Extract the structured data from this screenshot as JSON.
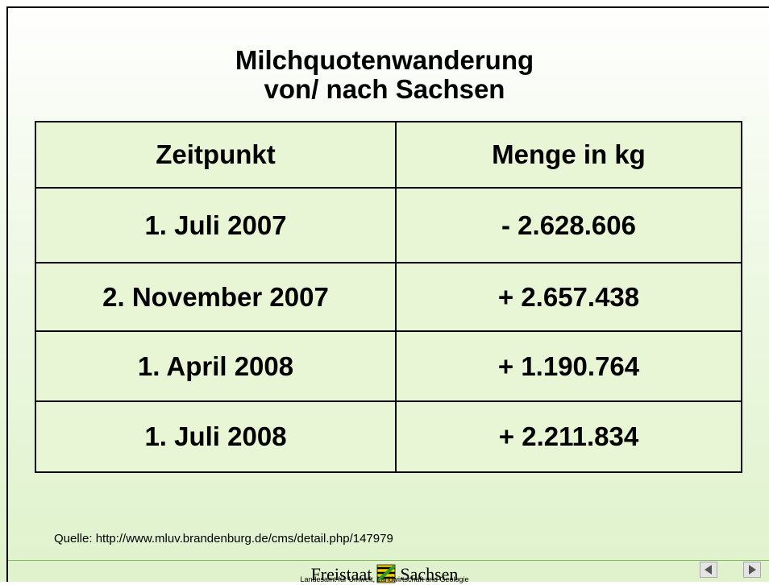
{
  "slide": {
    "title": [
      "Milchquotenwanderung",
      "von/ nach Sachsen"
    ],
    "table": {
      "header": [
        "Zeitpunkt",
        "Menge in kg"
      ],
      "rows": [
        [
          "1. Juli 2007",
          "- 2.628.606"
        ],
        [
          "2. November 2007",
          "+ 2.657.438"
        ],
        [
          "1. April 2008",
          "+ 1.190.764"
        ],
        [
          "1. Juli 2008",
          "+ 2.211.834"
        ]
      ]
    },
    "source": "Quelle: http://www.mluv.brandenburg.de/cms/detail.php/147979",
    "footer": {
      "left_word": "Freistaat",
      "right_word": "Sachsen",
      "subtitle": "Landesamt für Umwelt, Landwirtschaft und Geologie"
    }
  }
}
